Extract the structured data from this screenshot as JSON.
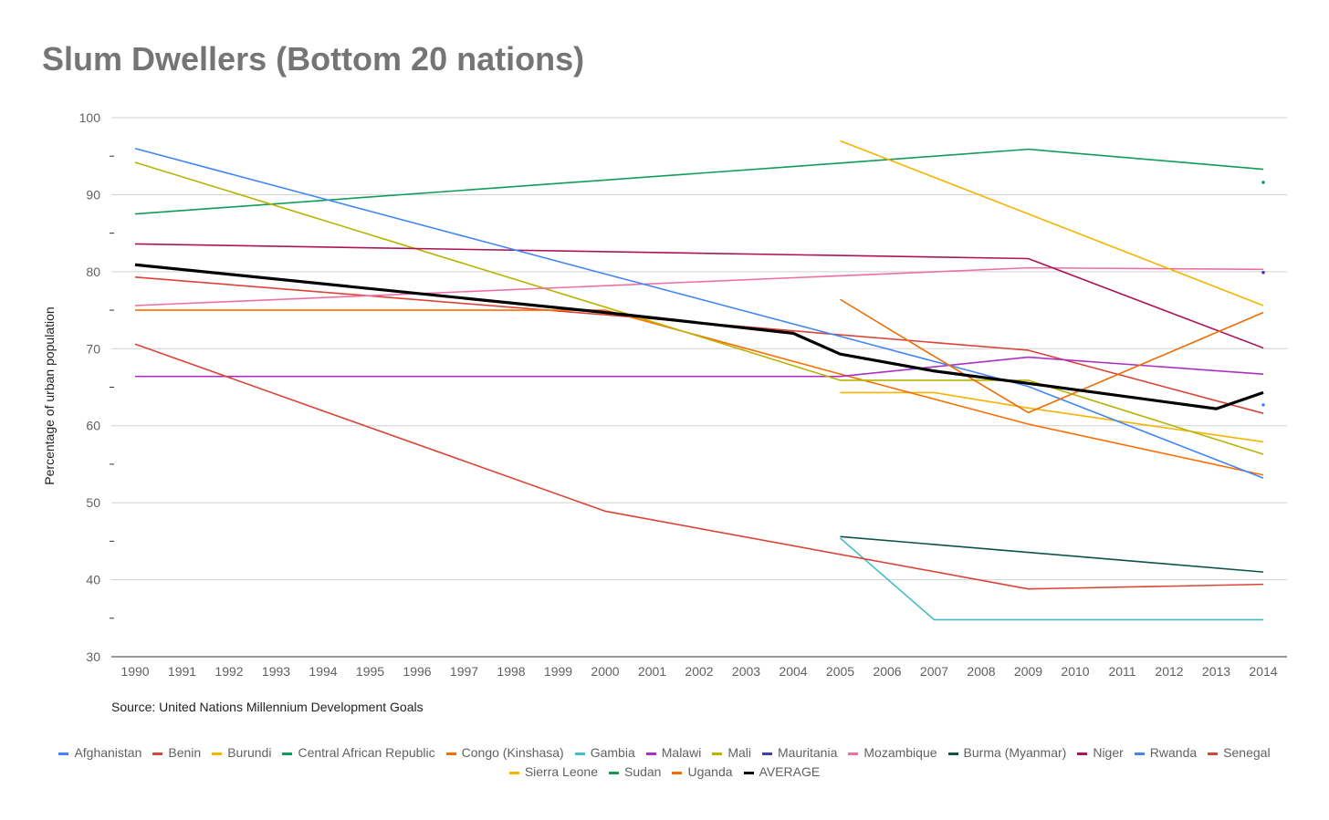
{
  "chart_data": {
    "type": "line",
    "title": "Slum Dwellers (Bottom 20 nations)",
    "ylabel": "Percentage of urban population",
    "xlabel": "",
    "source": "Source: United Nations Millennium Development Goals",
    "ylim": [
      30,
      100
    ],
    "yticks": [
      "30",
      "40",
      "50",
      "60",
      "70",
      "80",
      "90",
      "100"
    ],
    "x": [
      "1990",
      "1991",
      "1992",
      "1993",
      "1994",
      "1995",
      "1996",
      "1997",
      "1998",
      "1999",
      "2000",
      "2001",
      "2002",
      "2003",
      "2004",
      "2005",
      "2006",
      "2007",
      "2008",
      "2009",
      "2010",
      "2011",
      "2012",
      "2013",
      "2014"
    ],
    "grid": true,
    "legend_position": "bottom",
    "series": [
      {
        "name": "Afghanistan",
        "color": "#4285f4",
        "points": [
          [
            "2014",
            62.7
          ]
        ]
      },
      {
        "name": "Benin",
        "color": "#db4437",
        "points": [
          [
            "1990",
            79.3
          ],
          [
            "2000",
            74.4
          ],
          [
            "2005",
            71.8
          ],
          [
            "2009",
            69.8
          ],
          [
            "2014",
            61.6
          ]
        ]
      },
      {
        "name": "Burundi",
        "color": "#f4b400",
        "points": [
          [
            "2005",
            64.3
          ],
          [
            "2007",
            64.3
          ],
          [
            "2009",
            62.3
          ],
          [
            "2014",
            57.9
          ]
        ]
      },
      {
        "name": "Central African Republic",
        "color": "#0f9d58",
        "points": [
          [
            "1990",
            87.5
          ],
          [
            "2005",
            94.1
          ],
          [
            "2009",
            95.9
          ],
          [
            "2014",
            93.3
          ]
        ]
      },
      {
        "name": "Congo (Kinshasa)",
        "color": "#ff6d00",
        "points": [
          [
            "1990",
            75.0
          ],
          [
            "2000",
            75.0
          ],
          [
            "2005",
            66.7
          ],
          [
            "2009",
            60.2
          ],
          [
            "2014",
            53.6
          ]
        ]
      },
      {
        "name": "Gambia",
        "color": "#46bdc6",
        "points": [
          [
            "2005",
            45.4
          ],
          [
            "2007",
            34.8
          ],
          [
            "2014",
            34.8
          ]
        ]
      },
      {
        "name": "Malawi",
        "color": "#ab30c4",
        "points": [
          [
            "1990",
            66.4
          ],
          [
            "2005",
            66.4
          ],
          [
            "2009",
            68.9
          ],
          [
            "2014",
            66.7
          ]
        ]
      },
      {
        "name": "Mali",
        "color": "#b7b300",
        "points": [
          [
            "1990",
            94.2
          ],
          [
            "2000",
            75.4
          ],
          [
            "2005",
            65.9
          ],
          [
            "2009",
            65.9
          ],
          [
            "2014",
            56.3
          ]
        ]
      },
      {
        "name": "Mauritania",
        "color": "#3b3eac",
        "points": [
          [
            "2014",
            79.9
          ]
        ]
      },
      {
        "name": "Mozambique",
        "color": "#ee6fa3",
        "points": [
          [
            "1990",
            75.6
          ],
          [
            "2009",
            80.5
          ],
          [
            "2014",
            80.3
          ]
        ]
      },
      {
        "name": "Burma (Myanmar)",
        "color": "#0b5345",
        "points": [
          [
            "2005",
            45.6
          ],
          [
            "2014",
            41.0
          ]
        ]
      },
      {
        "name": "Niger",
        "color": "#ad1457",
        "points": [
          [
            "1990",
            83.6
          ],
          [
            "2009",
            81.7
          ],
          [
            "2014",
            70.1
          ]
        ]
      },
      {
        "name": "Rwanda",
        "color": "#4285f4",
        "points": [
          [
            "1990",
            96.0
          ],
          [
            "2000",
            79.7
          ],
          [
            "2005",
            71.6
          ],
          [
            "2009",
            65.1
          ],
          [
            "2014",
            53.2
          ]
        ]
      },
      {
        "name": "Senegal",
        "color": "#db4437",
        "points": [
          [
            "1990",
            70.6
          ],
          [
            "2000",
            48.9
          ],
          [
            "2009",
            38.8
          ],
          [
            "2014",
            39.4
          ]
        ]
      },
      {
        "name": "Sierra Leone",
        "color": "#f4b400",
        "points": [
          [
            "2005",
            97.0
          ],
          [
            "2009",
            87.5
          ],
          [
            "2014",
            75.6
          ]
        ]
      },
      {
        "name": "Sudan",
        "color": "#0f9d58",
        "points": [
          [
            "2014",
            91.6
          ]
        ]
      },
      {
        "name": "Uganda",
        "color": "#ef6c00",
        "points": [
          [
            "2005",
            76.4
          ],
          [
            "2007",
            69.0
          ],
          [
            "2009",
            61.7
          ],
          [
            "2014",
            74.7
          ]
        ]
      },
      {
        "name": "AVERAGE",
        "color": "#000000",
        "points": [
          [
            "1990",
            80.9
          ],
          [
            "2000",
            74.7
          ],
          [
            "2004",
            72.0
          ],
          [
            "2005",
            69.3
          ],
          [
            "2007",
            67.1
          ],
          [
            "2009",
            65.5
          ],
          [
            "2013",
            62.2
          ],
          [
            "2014",
            64.3
          ]
        ]
      }
    ]
  }
}
